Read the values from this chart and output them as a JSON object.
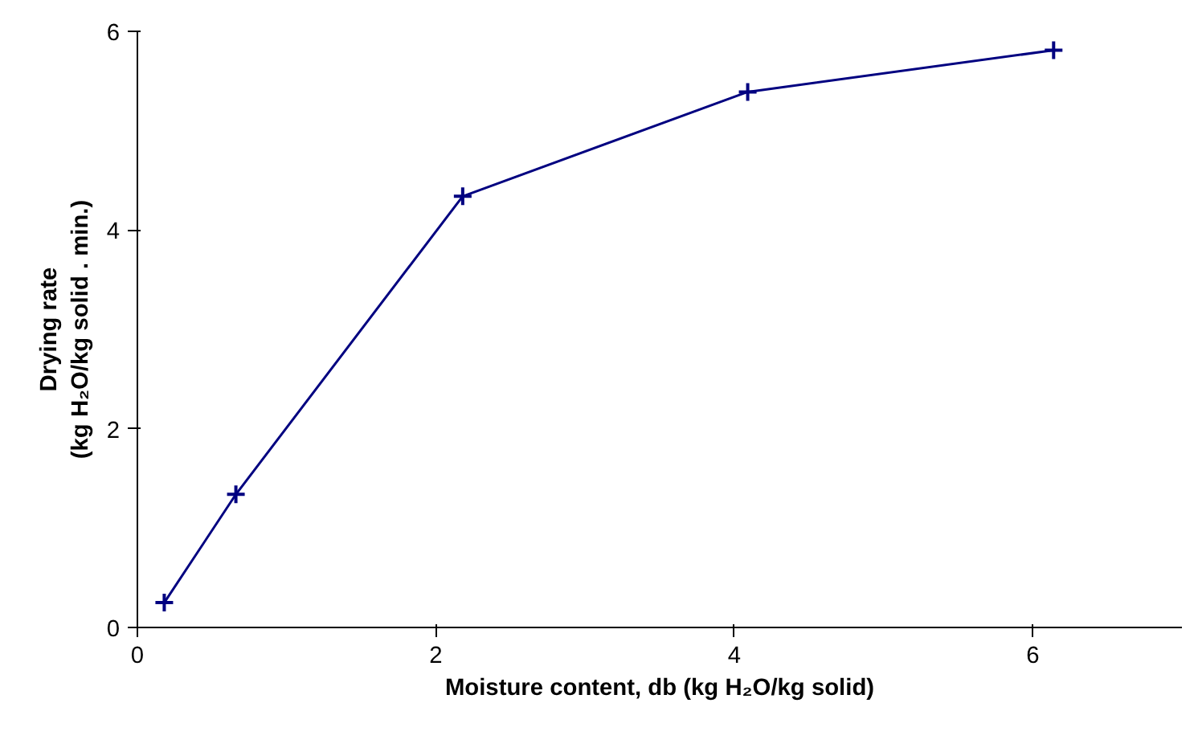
{
  "chart_data": {
    "type": "line",
    "xlabel": "Moisture content, db (kg H₂O/kg solid)",
    "ylabel": "Drying rate\n(kg H₂O/kg solid . min.)",
    "x": [
      0.18,
      0.66,
      2.18,
      4.09,
      6.14
    ],
    "series": [
      {
        "color": "#000080",
        "values": [
          0.25,
          1.34,
          4.34,
          5.39,
          5.81
        ]
      }
    ],
    "xlim": [
      0,
      7
    ],
    "ylim": [
      0,
      6
    ],
    "xticks": [
      0,
      2,
      4,
      6
    ],
    "yticks": [
      0,
      2,
      4,
      6
    ],
    "grid": false,
    "marker": "cross",
    "line_style": "solid"
  }
}
